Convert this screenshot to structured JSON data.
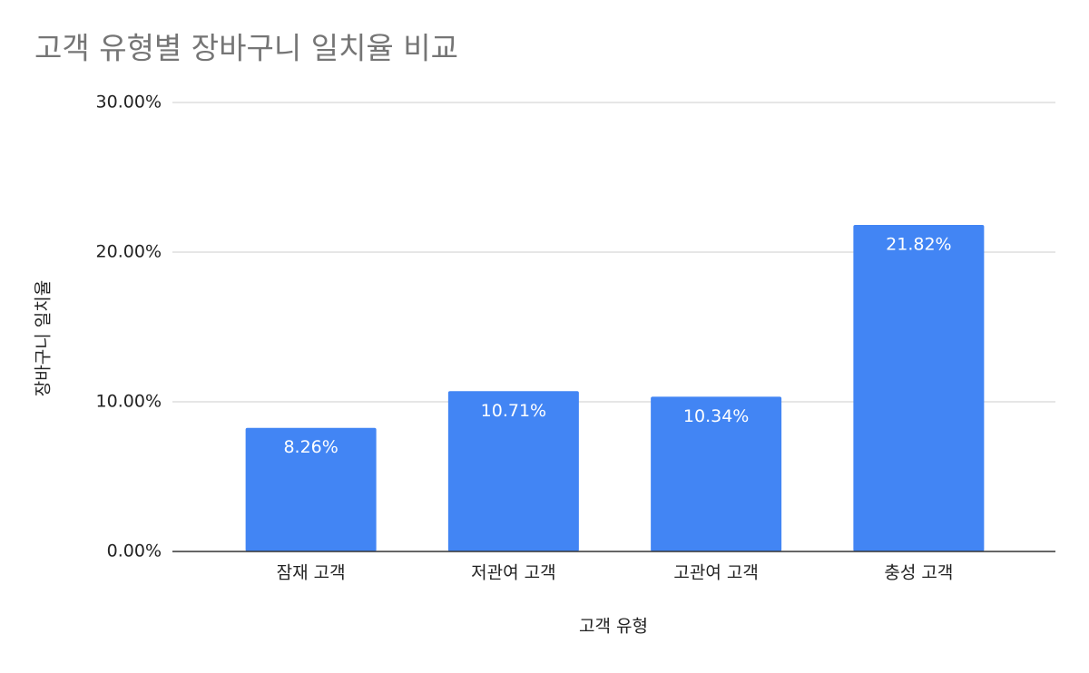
{
  "chart_data": {
    "type": "bar",
    "title": "고객 유형별 장바구니 일치율 비교",
    "x_label": "고객 유형",
    "y_label": "장바구니 일치율",
    "categories": [
      "잠재 고객",
      "저관여 고객",
      "고관여 고객",
      "충성 고객"
    ],
    "values": [
      8.26,
      10.71,
      10.34,
      21.82
    ],
    "value_labels": [
      "8.26%",
      "10.71%",
      "10.34%",
      "21.82%"
    ],
    "color": "#4285f4",
    "ylim": [
      0,
      30
    ],
    "yticks": [
      {
        "value": 0,
        "label": "0.00%"
      },
      {
        "value": 10,
        "label": "10.00%"
      },
      {
        "value": 20,
        "label": "20.00%"
      },
      {
        "value": 30,
        "label": "30.00%"
      }
    ],
    "grid": true
  }
}
